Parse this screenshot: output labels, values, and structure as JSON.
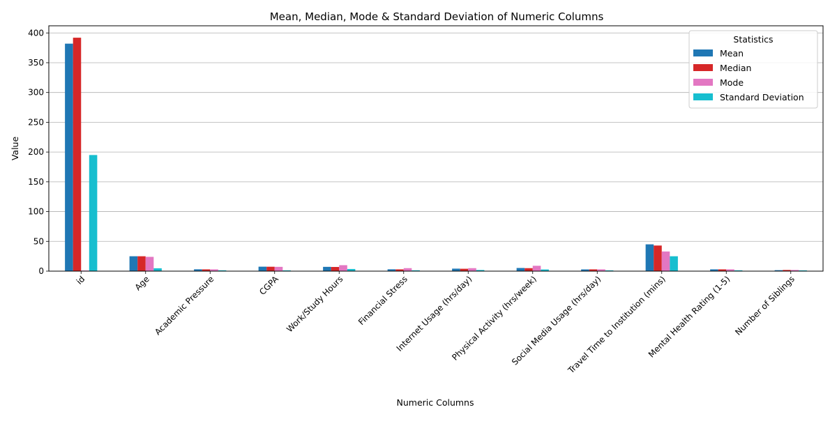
{
  "chart_data": {
    "type": "bar",
    "title": "Mean, Median, Mode & Standard Deviation of Numeric Columns",
    "xlabel": "Numeric Columns",
    "ylabel": "Value",
    "ylim": [
      0,
      412
    ],
    "yticks": [
      0,
      50,
      100,
      150,
      200,
      250,
      300,
      350,
      400
    ],
    "grid": "horizontal",
    "legend": {
      "title": "Statistics",
      "placement": "top-right"
    },
    "categories": [
      "id",
      "Age",
      "Academic Pressure",
      "CGPA",
      "Work/Study Hours",
      "Financial Stress",
      "Internet Usage (hrs/day)",
      "Physical Activity (hrs/week)",
      "Social Media Usage (hrs/day)",
      "Travel Time to Institution (mins)",
      "Mental Health Rating (1-5)",
      "Number of Siblings"
    ],
    "series": [
      {
        "name": "Mean",
        "color": "#1f77b4",
        "values": [
          382,
          25,
          3.1,
          7.5,
          7.2,
          3.1,
          4.2,
          5.3,
          2.9,
          45,
          3.0,
          1.6
        ]
      },
      {
        "name": "Median",
        "color": "#d62728",
        "values": [
          392,
          25,
          3.0,
          7.4,
          7.0,
          3.0,
          4.0,
          5.0,
          3.0,
          43,
          3.0,
          2.0
        ]
      },
      {
        "name": "Mode",
        "color": "#e377c2",
        "values": [
          1,
          24,
          3.0,
          7.2,
          10,
          5.0,
          5.0,
          9.0,
          3.0,
          33,
          3.0,
          2.0
        ]
      },
      {
        "name": "Standard Deviation",
        "color": "#17becf",
        "values": [
          195,
          4.8,
          1.4,
          1.3,
          3.6,
          1.4,
          1.9,
          2.8,
          1.3,
          25,
          1.4,
          1.3
        ]
      }
    ]
  }
}
